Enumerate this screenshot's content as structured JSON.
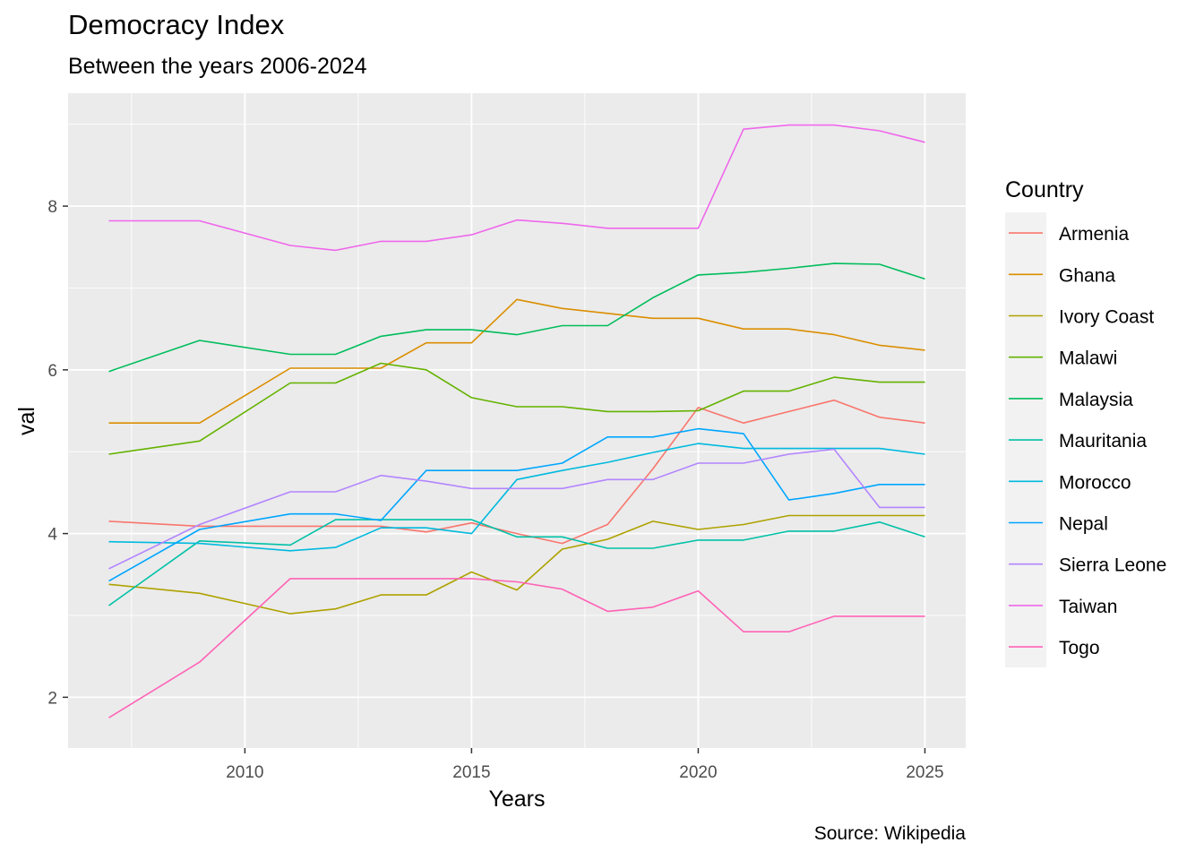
{
  "chart_data": {
    "type": "line",
    "title": "Democracy Index",
    "subtitle": "Between the years 2006-2024",
    "caption": "Source: Wikipedia",
    "xlabel": "Years",
    "ylabel": "val",
    "xlim": [
      2006.1,
      2025.9
    ],
    "ylim": [
      1.38,
      9.38
    ],
    "x_ticks": [
      2010,
      2015,
      2020,
      2025
    ],
    "y_ticks": [
      2,
      4,
      6,
      8
    ],
    "grid": true,
    "legend_title": "Country",
    "legend_position": "right",
    "series": [
      {
        "name": "Armenia",
        "color": "#F8766D",
        "points": [
          [
            2007,
            4.15
          ],
          [
            2009,
            4.09
          ],
          [
            2011,
            4.09
          ],
          [
            2013,
            4.09
          ],
          [
            2014,
            4.02
          ],
          [
            2015,
            4.13
          ],
          [
            2016,
            4.0
          ],
          [
            2017,
            3.88
          ],
          [
            2018,
            4.11
          ],
          [
            2019,
            4.79
          ],
          [
            2020,
            5.54
          ],
          [
            2021,
            5.35
          ],
          [
            2022,
            5.49
          ],
          [
            2023,
            5.63
          ],
          [
            2024,
            5.42
          ],
          [
            2025,
            5.35
          ]
        ]
      },
      {
        "name": "Ghana",
        "color": "#DB8E00",
        "points": [
          [
            2007,
            5.35
          ],
          [
            2009,
            5.35
          ],
          [
            2011,
            6.02
          ],
          [
            2012,
            6.02
          ],
          [
            2013,
            6.02
          ],
          [
            2014,
            6.33
          ],
          [
            2015,
            6.33
          ],
          [
            2016,
            6.86
          ],
          [
            2017,
            6.75
          ],
          [
            2018,
            6.69
          ],
          [
            2019,
            6.63
          ],
          [
            2020,
            6.63
          ],
          [
            2021,
            6.5
          ],
          [
            2022,
            6.5
          ],
          [
            2023,
            6.43
          ],
          [
            2024,
            6.3
          ],
          [
            2025,
            6.24
          ]
        ]
      },
      {
        "name": "Ivory Coast",
        "color": "#AEA200",
        "points": [
          [
            2007,
            3.38
          ],
          [
            2009,
            3.27
          ],
          [
            2011,
            3.02
          ],
          [
            2012,
            3.08
          ],
          [
            2013,
            3.25
          ],
          [
            2014,
            3.25
          ],
          [
            2015,
            3.53
          ],
          [
            2016,
            3.31
          ],
          [
            2017,
            3.81
          ],
          [
            2018,
            3.93
          ],
          [
            2019,
            4.15
          ],
          [
            2020,
            4.05
          ],
          [
            2021,
            4.11
          ],
          [
            2022,
            4.22
          ],
          [
            2023,
            4.22
          ],
          [
            2024,
            4.22
          ],
          [
            2025,
            4.22
          ]
        ]
      },
      {
        "name": "Malawi",
        "color": "#64B200",
        "points": [
          [
            2007,
            4.97
          ],
          [
            2009,
            5.13
          ],
          [
            2011,
            5.84
          ],
          [
            2012,
            5.84
          ],
          [
            2013,
            6.08
          ],
          [
            2014,
            6.0
          ],
          [
            2015,
            5.66
          ],
          [
            2016,
            5.55
          ],
          [
            2017,
            5.55
          ],
          [
            2018,
            5.49
          ],
          [
            2019,
            5.49
          ],
          [
            2020,
            5.5
          ],
          [
            2021,
            5.74
          ],
          [
            2022,
            5.74
          ],
          [
            2023,
            5.91
          ],
          [
            2024,
            5.85
          ],
          [
            2025,
            5.85
          ]
        ]
      },
      {
        "name": "Malaysia",
        "color": "#00BD5C",
        "points": [
          [
            2007,
            5.98
          ],
          [
            2009,
            6.36
          ],
          [
            2011,
            6.19
          ],
          [
            2012,
            6.19
          ],
          [
            2013,
            6.41
          ],
          [
            2014,
            6.49
          ],
          [
            2015,
            6.49
          ],
          [
            2016,
            6.43
          ],
          [
            2017,
            6.54
          ],
          [
            2018,
            6.54
          ],
          [
            2019,
            6.88
          ],
          [
            2020,
            7.16
          ],
          [
            2021,
            7.19
          ],
          [
            2022,
            7.24
          ],
          [
            2023,
            7.3
          ],
          [
            2024,
            7.29
          ],
          [
            2025,
            7.11
          ]
        ]
      },
      {
        "name": "Mauritania",
        "color": "#00C1A7",
        "points": [
          [
            2007,
            3.12
          ],
          [
            2009,
            3.91
          ],
          [
            2011,
            3.86
          ],
          [
            2012,
            4.17
          ],
          [
            2013,
            4.17
          ],
          [
            2014,
            4.17
          ],
          [
            2015,
            4.17
          ],
          [
            2016,
            3.96
          ],
          [
            2017,
            3.96
          ],
          [
            2018,
            3.82
          ],
          [
            2019,
            3.82
          ],
          [
            2020,
            3.92
          ],
          [
            2021,
            3.92
          ],
          [
            2022,
            4.03
          ],
          [
            2023,
            4.03
          ],
          [
            2024,
            4.14
          ],
          [
            2025,
            3.96
          ]
        ]
      },
      {
        "name": "Morocco",
        "color": "#00BADE",
        "points": [
          [
            2007,
            3.9
          ],
          [
            2009,
            3.88
          ],
          [
            2011,
            3.79
          ],
          [
            2012,
            3.83
          ],
          [
            2013,
            4.07
          ],
          [
            2014,
            4.07
          ],
          [
            2015,
            4.0
          ],
          [
            2016,
            4.66
          ],
          [
            2017,
            4.77
          ],
          [
            2018,
            4.87
          ],
          [
            2019,
            4.99
          ],
          [
            2020,
            5.1
          ],
          [
            2021,
            5.04
          ],
          [
            2022,
            5.04
          ],
          [
            2023,
            5.04
          ],
          [
            2024,
            5.04
          ],
          [
            2025,
            4.97
          ]
        ]
      },
      {
        "name": "Nepal",
        "color": "#00A6FF",
        "points": [
          [
            2007,
            3.42
          ],
          [
            2009,
            4.05
          ],
          [
            2011,
            4.24
          ],
          [
            2012,
            4.24
          ],
          [
            2013,
            4.16
          ],
          [
            2014,
            4.77
          ],
          [
            2015,
            4.77
          ],
          [
            2016,
            4.77
          ],
          [
            2017,
            4.86
          ],
          [
            2018,
            5.18
          ],
          [
            2019,
            5.18
          ],
          [
            2020,
            5.28
          ],
          [
            2021,
            5.22
          ],
          [
            2022,
            4.41
          ],
          [
            2023,
            4.49
          ],
          [
            2024,
            4.6
          ],
          [
            2025,
            4.6
          ]
        ]
      },
      {
        "name": "Sierra Leone",
        "color": "#B385FF",
        "points": [
          [
            2007,
            3.57
          ],
          [
            2009,
            4.11
          ],
          [
            2011,
            4.51
          ],
          [
            2012,
            4.51
          ],
          [
            2013,
            4.71
          ],
          [
            2014,
            4.64
          ],
          [
            2015,
            4.55
          ],
          [
            2016,
            4.55
          ],
          [
            2017,
            4.55
          ],
          [
            2018,
            4.66
          ],
          [
            2019,
            4.66
          ],
          [
            2020,
            4.86
          ],
          [
            2021,
            4.86
          ],
          [
            2022,
            4.97
          ],
          [
            2023,
            5.03
          ],
          [
            2024,
            4.32
          ],
          [
            2025,
            4.32
          ]
        ]
      },
      {
        "name": "Taiwan",
        "color": "#EF67EB",
        "points": [
          [
            2007,
            7.82
          ],
          [
            2009,
            7.82
          ],
          [
            2011,
            7.52
          ],
          [
            2012,
            7.46
          ],
          [
            2013,
            7.57
          ],
          [
            2014,
            7.57
          ],
          [
            2015,
            7.65
          ],
          [
            2016,
            7.83
          ],
          [
            2017,
            7.79
          ],
          [
            2018,
            7.73
          ],
          [
            2019,
            7.73
          ],
          [
            2020,
            7.73
          ],
          [
            2021,
            8.94
          ],
          [
            2022,
            8.99
          ],
          [
            2023,
            8.99
          ],
          [
            2024,
            8.92
          ],
          [
            2025,
            8.78
          ]
        ]
      },
      {
        "name": "Togo",
        "color": "#FF63B6",
        "points": [
          [
            2007,
            1.75
          ],
          [
            2009,
            2.43
          ],
          [
            2011,
            3.45
          ],
          [
            2012,
            3.45
          ],
          [
            2013,
            3.45
          ],
          [
            2014,
            3.45
          ],
          [
            2015,
            3.45
          ],
          [
            2016,
            3.41
          ],
          [
            2017,
            3.32
          ],
          [
            2018,
            3.05
          ],
          [
            2019,
            3.1
          ],
          [
            2020,
            3.3
          ],
          [
            2021,
            2.8
          ],
          [
            2022,
            2.8
          ],
          [
            2023,
            2.99
          ],
          [
            2024,
            2.99
          ],
          [
            2025,
            2.99
          ]
        ]
      }
    ]
  }
}
